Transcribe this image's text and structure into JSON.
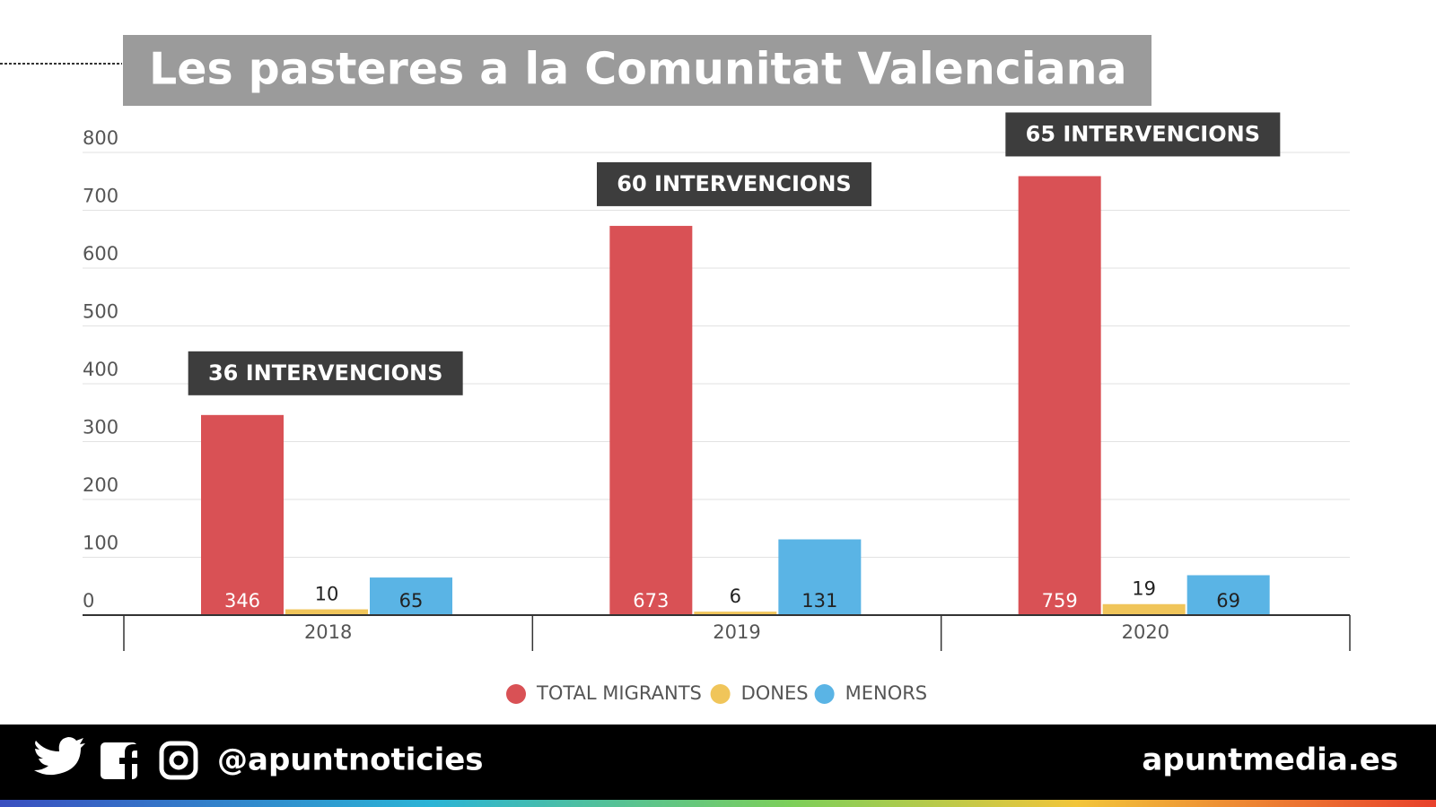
{
  "chart_data": {
    "type": "bar",
    "title": "Les pasteres a la Comunitat Valenciana",
    "categories": [
      "2018",
      "2019",
      "2020"
    ],
    "series": [
      {
        "name": "TOTAL MIGRANTS",
        "color": "#d95155",
        "values": [
          346,
          673,
          759
        ]
      },
      {
        "name": "DONES",
        "color": "#f0c55a",
        "values": [
          10,
          6,
          19
        ]
      },
      {
        "name": "MENORS",
        "color": "#5ab4e5",
        "values": [
          65,
          131,
          69
        ]
      }
    ],
    "annotations": [
      "36 INTERVENCIONS",
      "60 INTERVENCIONS",
      "65 INTERVENCIONS"
    ],
    "ylim": [
      0,
      800
    ],
    "yticks": [
      0,
      100,
      200,
      300,
      400,
      500,
      600,
      700,
      800
    ],
    "grid": true
  },
  "footer": {
    "handle": "@apuntnoticies",
    "site": "apuntmedia.es"
  }
}
